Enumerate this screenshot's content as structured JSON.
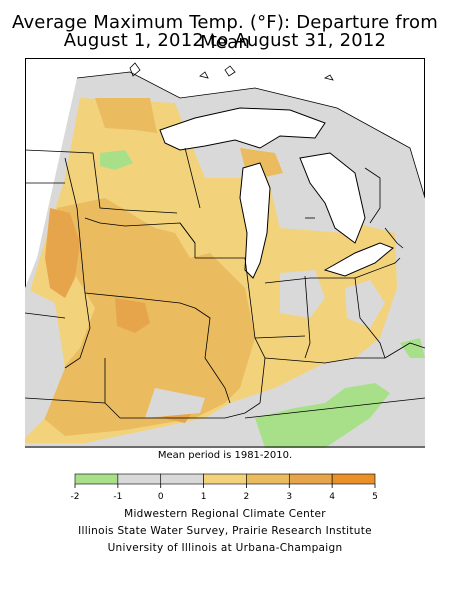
{
  "title": {
    "line1": "Average Maximum Temp. (°F): Departure from Mean",
    "line2": "August 1, 2012 to August 31, 2012"
  },
  "note": "Mean period is 1981-2010.",
  "legend": {
    "ticks": [
      "-2",
      "-1",
      "0",
      "1",
      "2",
      "3",
      "4",
      "5"
    ],
    "bins": [
      {
        "from": -2,
        "to": -1,
        "color": "#a8e08a"
      },
      {
        "from": -1,
        "to": 0,
        "color": "#d9d9d9"
      },
      {
        "from": 0,
        "to": 1,
        "color": "#d9d9d9"
      },
      {
        "from": 1,
        "to": 2,
        "color": "#f2d27a"
      },
      {
        "from": 2,
        "to": 3,
        "color": "#ebbb60"
      },
      {
        "from": 3,
        "to": 4,
        "color": "#e6a54a"
      },
      {
        "from": 4,
        "to": 5,
        "color": "#e99028"
      }
    ]
  },
  "colors": {
    "neutral": "#d9d9d9",
    "cool": "#a8e08a",
    "warm1": "#f2d27a",
    "warm2": "#ebbb60",
    "warm3": "#e6a54a",
    "warm4": "#e99028",
    "water": "#ffffff",
    "border": "#000000"
  },
  "credits": [
    "Midwestern Regional Climate Center",
    "Illinois State Water Survey, Prairie Research Institute",
    "University of Illinois at Urbana-Champaign"
  ]
}
